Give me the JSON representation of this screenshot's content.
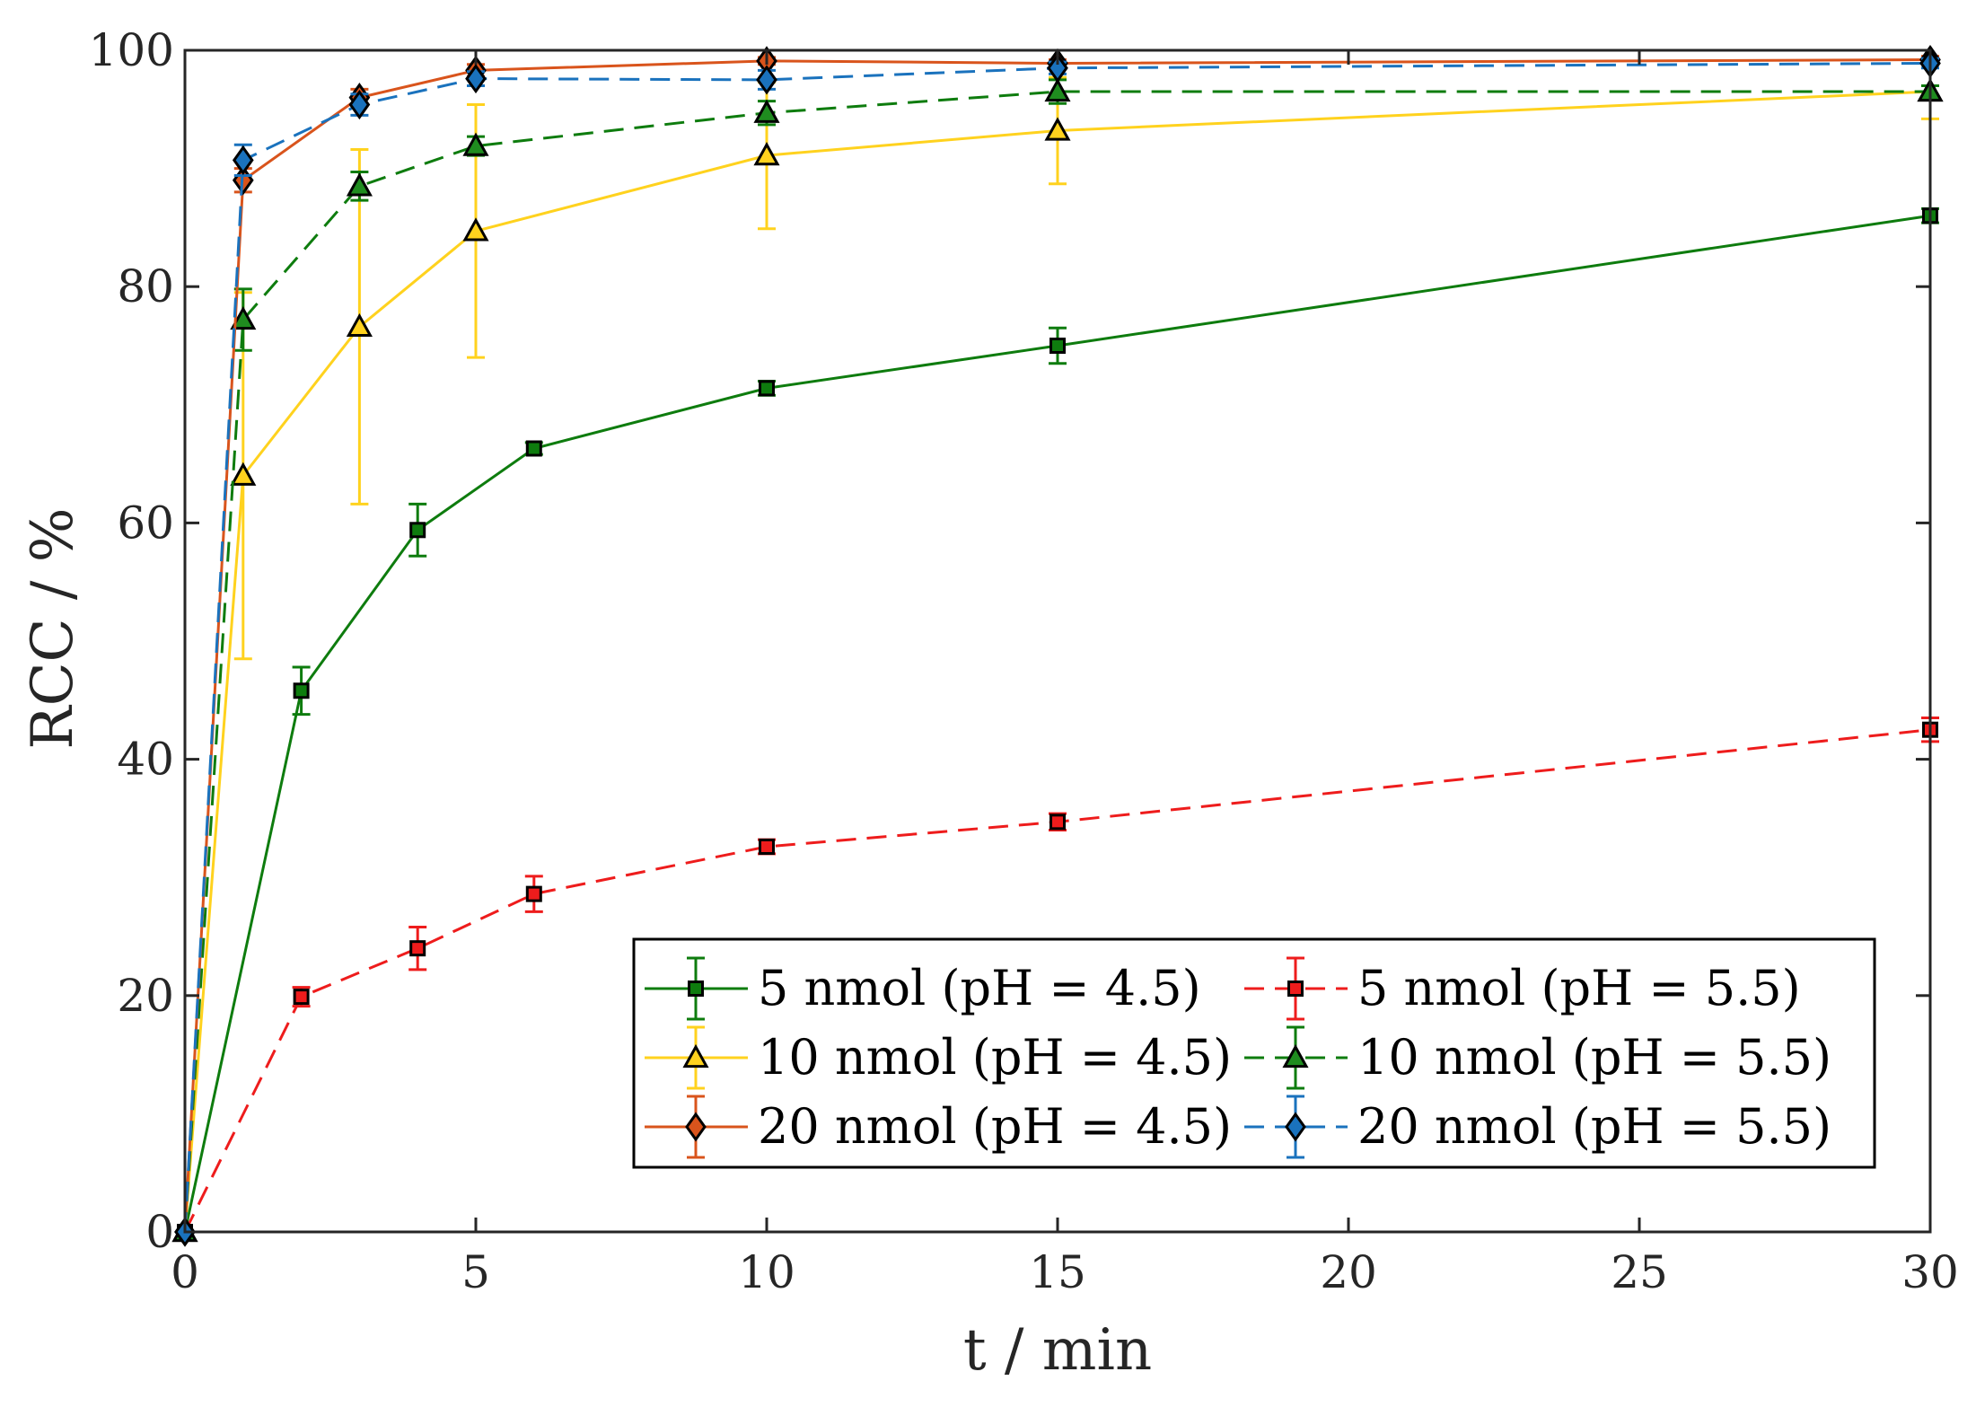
{
  "chart_data": {
    "type": "line",
    "title": "",
    "xlabel": "t / min",
    "ylabel": "RCC / %",
    "xlim": [
      0,
      30
    ],
    "ylim": [
      0,
      100
    ],
    "xticks": [
      0,
      5,
      10,
      15,
      20,
      25,
      30
    ],
    "yticks": [
      0,
      20,
      40,
      60,
      80,
      100
    ],
    "grid": false,
    "legend_position": "bottom-right",
    "series": [
      {
        "name": "5 nmol (pH = 4.5)",
        "color": "#0e7c0e",
        "dash": "solid",
        "marker": "square",
        "marker_fill": "#0e7c0e",
        "x": [
          0,
          2,
          4,
          6,
          10,
          15,
          30
        ],
        "y": [
          0,
          45.8,
          59.4,
          66.3,
          71.4,
          75.0,
          86.0
        ],
        "err": [
          0,
          2.0,
          2.2,
          0.5,
          0.6,
          1.5,
          0.6
        ]
      },
      {
        "name": "5 nmol (pH = 5.5)",
        "color": "#ee1c1c",
        "dash": "dashed",
        "marker": "square",
        "marker_fill": "#ee1c1c",
        "x": [
          0,
          2,
          4,
          6,
          10,
          15,
          30
        ],
        "y": [
          0,
          19.9,
          24.0,
          28.6,
          32.6,
          34.7,
          42.5
        ],
        "err": [
          0,
          0.8,
          1.8,
          1.5,
          0.6,
          0.7,
          1.0
        ]
      },
      {
        "name": "10 nmol (pH = 4.5)",
        "color": "#ffd21e",
        "dash": "solid",
        "marker": "triangle",
        "marker_fill": "#ffd21e",
        "x": [
          0,
          1,
          3,
          5,
          10,
          15,
          30
        ],
        "y": [
          0,
          64.0,
          76.6,
          84.7,
          91.1,
          93.2,
          96.5
        ],
        "err": [
          0,
          15.5,
          15.0,
          10.7,
          6.2,
          4.5,
          2.3
        ]
      },
      {
        "name": "10 nmol (pH = 5.5)",
        "color": "#0e7c0e",
        "dash": "dashed",
        "marker": "triangle",
        "marker_fill": "#1f8c1f",
        "x": [
          0,
          1,
          3,
          5,
          10,
          15,
          30
        ],
        "y": [
          0,
          77.2,
          88.5,
          91.9,
          94.7,
          96.5,
          96.5
        ],
        "err": [
          0,
          2.6,
          1.2,
          0.8,
          1.0,
          1.0,
          0.5
        ]
      },
      {
        "name": "20 nmol (pH = 4.5)",
        "color": "#d9541c",
        "dash": "solid",
        "marker": "diamond",
        "marker_fill": "#d9541c",
        "x": [
          0,
          1,
          3,
          5,
          10,
          15,
          30
        ],
        "y": [
          0,
          89.0,
          96.0,
          98.3,
          99.1,
          98.9,
          99.2
        ],
        "err": [
          0,
          1.0,
          0.7,
          0.5,
          0.3,
          0.3,
          0.3
        ]
      },
      {
        "name": "20 nmol (pH = 5.5)",
        "color": "#1a72bd",
        "dash": "dashed",
        "marker": "diamond",
        "marker_fill": "#1a72bd",
        "x": [
          0,
          1,
          3,
          5,
          10,
          15,
          30
        ],
        "y": [
          0,
          90.7,
          95.4,
          97.6,
          97.5,
          98.5,
          98.9
        ],
        "err": [
          0,
          1.3,
          0.9,
          0.6,
          0.8,
          0.5,
          0.4
        ]
      }
    ]
  }
}
